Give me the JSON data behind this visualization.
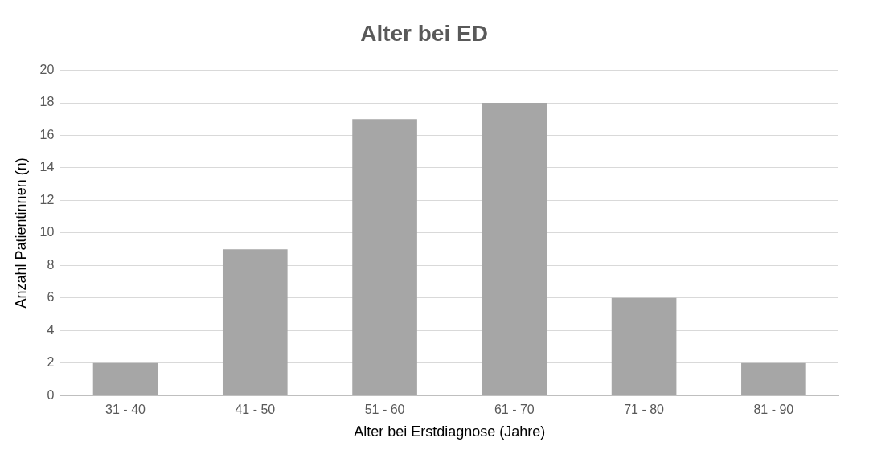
{
  "chart_data": {
    "type": "bar",
    "title": "Alter bei ED",
    "xlabel": "Alter bei Erstdiagnose (Jahre)",
    "ylabel": "Anzahl Patientinnen (n)",
    "categories": [
      "31 - 40",
      "41 - 50",
      "51 - 60",
      "61 - 70",
      "71 - 80",
      "81 - 90"
    ],
    "values": [
      2,
      9,
      17,
      18,
      6,
      2
    ],
    "color": "#a6a6a6",
    "ylim": [
      0,
      20
    ],
    "yticks": [
      0,
      2,
      4,
      6,
      8,
      10,
      12,
      14,
      16,
      18,
      20
    ],
    "grid": "y",
    "legend": false
  }
}
